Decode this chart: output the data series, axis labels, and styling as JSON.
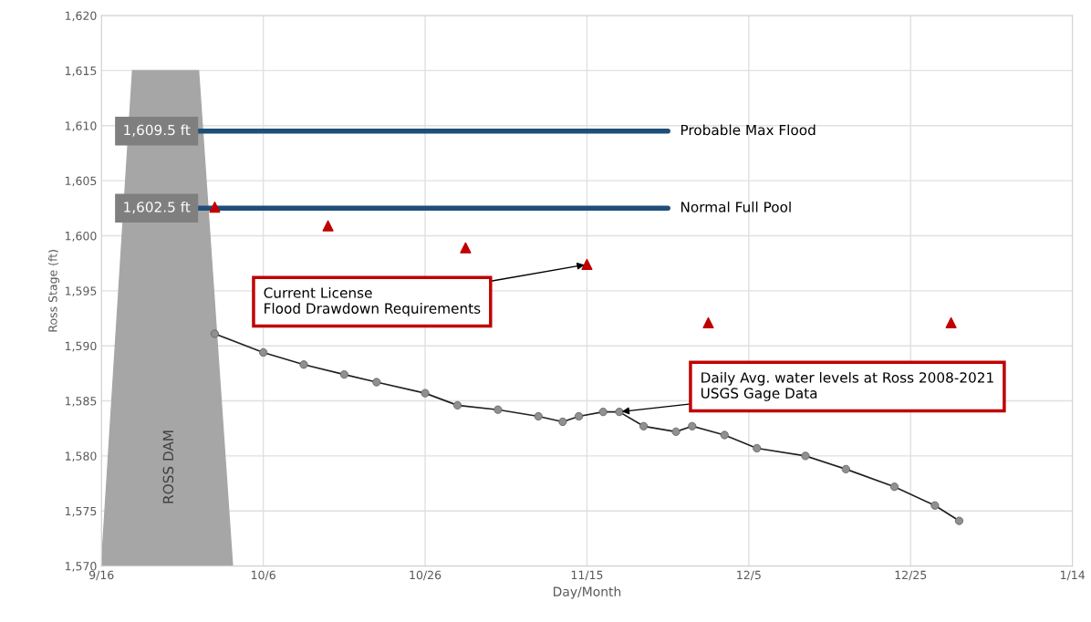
{
  "chart_data": {
    "type": "line",
    "xlabel": "Day/Month",
    "ylabel": "Ross Stage (ft)",
    "grid": true,
    "xlim": [
      "2020-09-16",
      "2021-01-14"
    ],
    "xticks": [
      {
        "value": "2020-09-16",
        "label": "9/16"
      },
      {
        "value": "2020-10-06",
        "label": "10/6"
      },
      {
        "value": "2020-10-26",
        "label": "10/26"
      },
      {
        "value": "2020-11-15",
        "label": "11/15"
      },
      {
        "value": "2020-12-05",
        "label": "12/5"
      },
      {
        "value": "2020-12-25",
        "label": "12/25"
      },
      {
        "value": "2021-01-14",
        "label": "1/14"
      }
    ],
    "ylim": [
      1570,
      1620
    ],
    "yticks": [
      {
        "value": 1570,
        "label": "1,570"
      },
      {
        "value": 1575,
        "label": "1,575"
      },
      {
        "value": 1580,
        "label": "1,580"
      },
      {
        "value": 1585,
        "label": "1,585"
      },
      {
        "value": 1590,
        "label": "1,590"
      },
      {
        "value": 1595,
        "label": "1,595"
      },
      {
        "value": 1600,
        "label": "1,600"
      },
      {
        "value": 1605,
        "label": "1,605"
      },
      {
        "value": 1610,
        "label": "1,610"
      },
      {
        "value": 1615,
        "label": "1,615"
      },
      {
        "value": 1620,
        "label": "1,620"
      }
    ],
    "series": [
      {
        "name": "Probable Max Flood",
        "color": "#1f4e79",
        "marker": "none",
        "x": [
          "2020-09-28",
          "2020-11-25"
        ],
        "values": [
          1609.5,
          1609.5
        ]
      },
      {
        "name": "Normal Full Pool",
        "color": "#1f4e79",
        "marker": "none",
        "x": [
          "2020-09-28",
          "2020-11-25"
        ],
        "values": [
          1602.5,
          1602.5
        ]
      },
      {
        "type": "scatter",
        "color": "#c00000",
        "marker": "triangle",
        "x": [
          "2020-09-30",
          "2020-10-14",
          "2020-10-31",
          "2020-11-15",
          "2020-11-30",
          "2020-12-30"
        ],
        "values": [
          1602.6,
          1600.9,
          1598.9,
          1597.4,
          1592.1,
          1592.1
        ]
      },
      {
        "color": "#909090",
        "marker": "circle",
        "x": [
          "2020-09-30",
          "2020-10-06",
          "2020-10-11",
          "2020-10-16",
          "2020-10-20",
          "2020-10-26",
          "2020-10-30",
          "2020-11-04",
          "2020-11-09",
          "2020-11-12",
          "2020-11-14",
          "2020-11-17",
          "2020-11-19",
          "2020-11-22",
          "2020-11-26",
          "2020-11-28",
          "2020-12-02",
          "2020-12-06",
          "2020-12-12",
          "2020-12-17",
          "2020-12-23",
          "2020-12-28",
          "2020-12-31"
        ],
        "values": [
          1591.1,
          1589.4,
          1588.3,
          1587.4,
          1586.7,
          1585.7,
          1584.6,
          1584.2,
          1583.6,
          1583.1,
          1583.6,
          1584.0,
          1584.0,
          1582.7,
          1582.2,
          1582.7,
          1581.9,
          1580.7,
          1580.0,
          1578.8,
          1577.2,
          1575.5,
          1574.1
        ]
      }
    ],
    "annotations": [
      {
        "text": "1,609.5 ft",
        "x": "2020-09-28",
        "y": 1609.5
      },
      {
        "text": "1,602.5 ft",
        "x": "2020-09-28",
        "y": 1602.5
      },
      {
        "text": "Current License\nFlood Drawdown Requirements",
        "x": "2020-11-15",
        "y": 1597.4
      },
      {
        "text": "Daily Avg. water levels at Ross 2008-2021\nUSGS Gage Data",
        "x": "2020-11-19",
        "y": 1584.0
      },
      "ROSS DAM"
    ]
  }
}
